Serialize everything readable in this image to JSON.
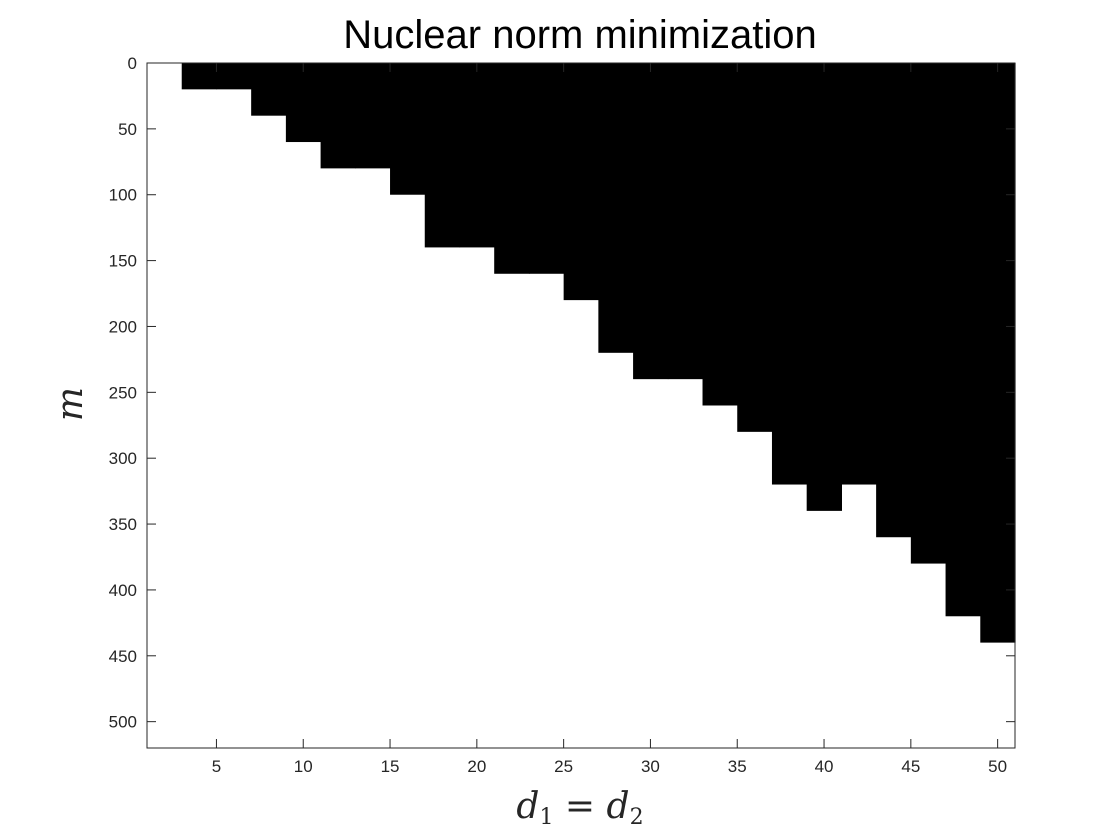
{
  "chart_data": {
    "type": "heatmap",
    "title": "Nuclear norm minimization",
    "xlabel": "d1 = d2",
    "xlabel_main": "d",
    "xlabel_sub": "1",
    "xlabel_eq": " = ",
    "xlabel_main2": "d",
    "xlabel_sub2": "2",
    "ylabel": "m",
    "xlim": [
      1,
      51
    ],
    "ylim": [
      0,
      520
    ],
    "y_reversed": true,
    "grid": false,
    "cell_width_x": 2,
    "cell_height_y": 20,
    "x_ticks": [
      5,
      10,
      15,
      20,
      25,
      30,
      35,
      40,
      45,
      50
    ],
    "y_ticks": [
      0,
      50,
      100,
      150,
      200,
      250,
      300,
      350,
      400,
      450,
      500
    ],
    "colormap": {
      "0": "#ffffff",
      "1": "#000000"
    },
    "x_columns": [
      2,
      4,
      6,
      8,
      10,
      12,
      14,
      16,
      18,
      20,
      22,
      24,
      26,
      28,
      30,
      32,
      34,
      36,
      38,
      40,
      42,
      44,
      46,
      48,
      50
    ],
    "black_until_m": [
      0,
      20,
      20,
      40,
      60,
      80,
      80,
      100,
      140,
      140,
      160,
      160,
      180,
      220,
      240,
      240,
      260,
      280,
      320,
      340,
      320,
      360,
      380,
      420,
      440
    ],
    "description_note": ""
  }
}
